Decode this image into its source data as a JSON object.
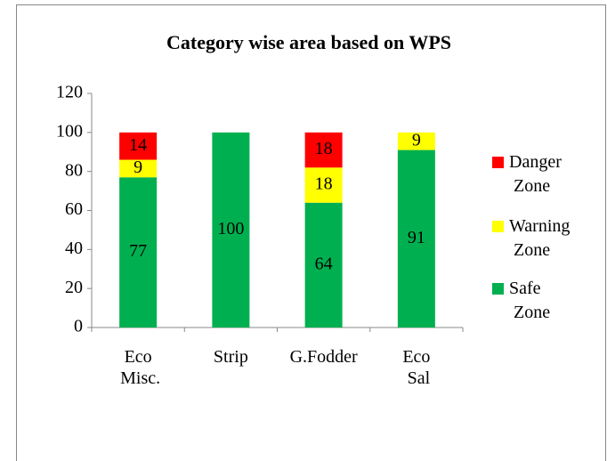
{
  "chart_data": {
    "type": "stacked_bar",
    "title": "Category wise area based on WPS",
    "categories": [
      "Eco Misc.",
      "Strip",
      "G.Fodder",
      "Eco Sal"
    ],
    "series": [
      {
        "name": "Safe Zone",
        "color": "#00b050",
        "values": [
          77,
          100,
          64,
          91
        ]
      },
      {
        "name": "Warning Zone",
        "color": "#ffff00",
        "values": [
          9,
          null,
          18,
          9
        ]
      },
      {
        "name": "Danger Zone",
        "color": "#ff0000",
        "values": [
          14,
          null,
          18,
          null
        ]
      }
    ],
    "ylim": [
      0,
      120
    ],
    "yticks": [
      0,
      20,
      40,
      60,
      80,
      100,
      120
    ],
    "legend": "right"
  }
}
